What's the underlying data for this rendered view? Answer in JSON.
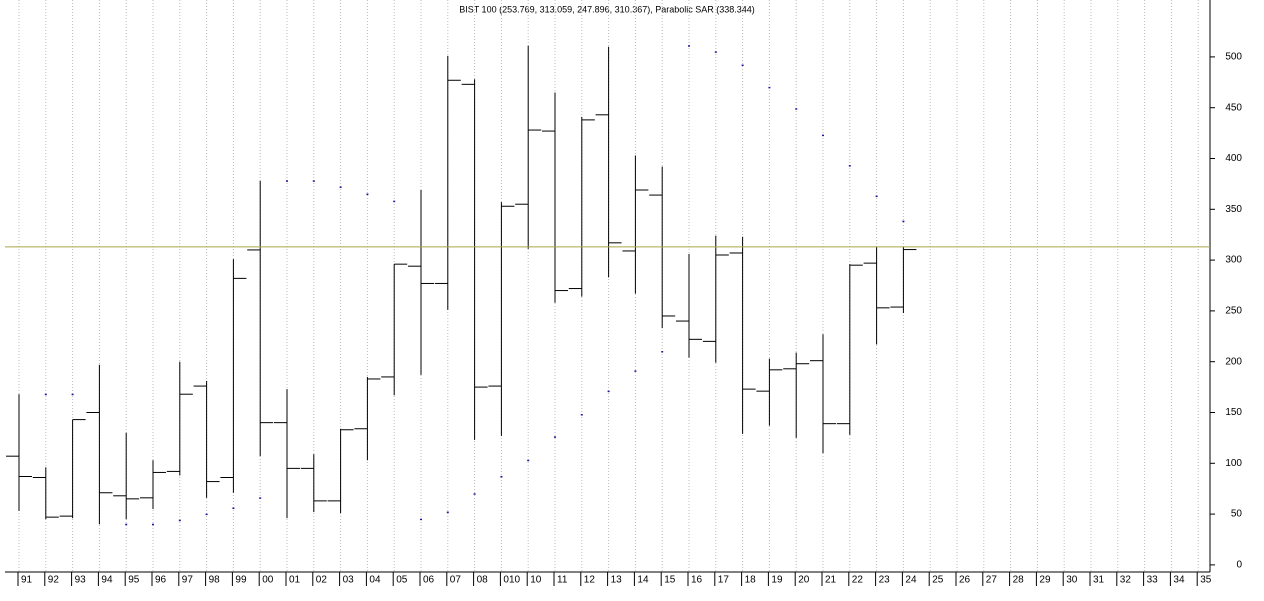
{
  "chart_data": {
    "type": "ohlc",
    "title": "BIST 100 (253.769, 313.059, 247.896, 310.367), Parabolic SAR (338.344)",
    "categories": [
      "91",
      "92",
      "93",
      "94",
      "95",
      "96",
      "97",
      "98",
      "99",
      "00",
      "01",
      "02",
      "03",
      "04",
      "05",
      "06",
      "07",
      "08",
      "010",
      "10",
      "11",
      "12",
      "13",
      "14",
      "15",
      "16",
      "17",
      "18",
      "19",
      "20",
      "21",
      "22",
      "23",
      "24",
      "25",
      "26",
      "27",
      "28",
      "29",
      "30",
      "31",
      "32",
      "33",
      "34",
      "35"
    ],
    "open": [
      107,
      86,
      48,
      150,
      68,
      66,
      92,
      176,
      86,
      310,
      140,
      95,
      63,
      134,
      185,
      294,
      277,
      473,
      176,
      355,
      427,
      272,
      443,
      309,
      364,
      240,
      220,
      307,
      171,
      193,
      201,
      139,
      297,
      253.769,
      null,
      null,
      null,
      null,
      null,
      null,
      null,
      null,
      null,
      null,
      null
    ],
    "high": [
      168,
      96,
      143,
      197,
      130,
      103,
      200,
      181,
      301,
      378,
      173,
      109,
      134,
      185,
      296,
      369,
      501,
      478,
      357,
      511,
      465,
      441,
      510,
      403,
      392,
      306,
      324,
      323,
      203,
      209,
      227,
      296,
      313,
      313.059,
      null,
      null,
      null,
      null,
      null,
      null,
      null,
      null,
      null,
      null,
      null
    ],
    "low": [
      53,
      45,
      46,
      40,
      45,
      55,
      88,
      66,
      71,
      107,
      46,
      52,
      51,
      103,
      167,
      187,
      251,
      123,
      127,
      311,
      258,
      264,
      283,
      267,
      233,
      204,
      199,
      129,
      137,
      125,
      110,
      128,
      217,
      247.896,
      null,
      null,
      null,
      null,
      null,
      null,
      null,
      null,
      null,
      null,
      null
    ],
    "close": [
      87,
      47,
      143,
      71,
      65,
      91,
      168,
      82,
      282,
      140,
      95,
      63,
      133,
      183,
      296,
      277,
      477,
      175,
      353,
      428,
      270,
      438,
      317,
      369,
      245,
      222,
      305,
      173,
      192,
      198,
      139,
      295,
      253,
      310.367,
      null,
      null,
      null,
      null,
      null,
      null,
      null,
      null,
      null,
      null,
      null
    ],
    "sar": [
      null,
      168,
      168,
      null,
      40,
      40,
      44,
      50,
      56,
      66,
      378,
      378,
      372,
      365,
      358,
      45,
      52,
      70,
      87,
      103,
      126,
      148,
      171,
      191,
      210,
      511,
      505,
      492,
      470,
      449,
      423,
      393,
      363,
      338.344,
      null,
      null,
      null,
      null,
      null,
      null,
      null,
      null,
      null,
      null,
      null
    ],
    "bar_color": "#000000",
    "sar_color": "#1a1aa0",
    "price_line_color": "#a8a84a",
    "ylim": [
      -7,
      556
    ],
    "yticks": [
      0,
      50,
      100,
      150,
      200,
      250,
      300,
      350,
      400,
      450,
      500
    ],
    "grid": true
  }
}
